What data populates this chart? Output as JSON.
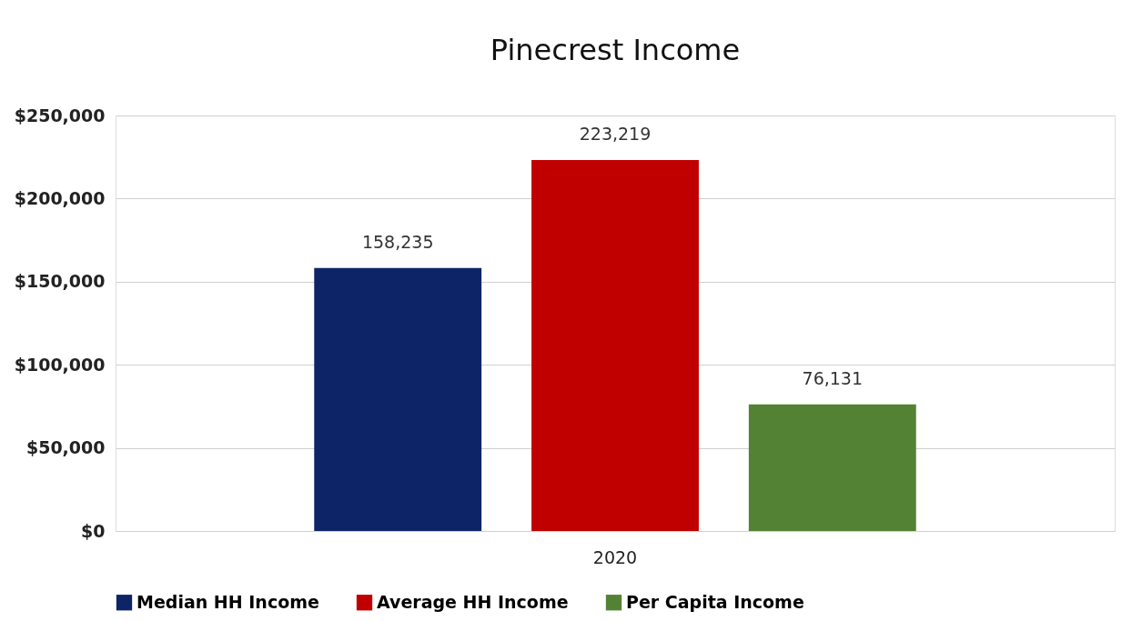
{
  "chart_data": {
    "type": "bar",
    "title": "Pinecrest Income",
    "categories": [
      "2020"
    ],
    "series": [
      {
        "name": "Median HH Income",
        "color": "#0d2566",
        "values": [
          158235
        ],
        "value_labels": [
          "158,235"
        ]
      },
      {
        "name": "Average HH Income",
        "color": "#c00000",
        "values": [
          223219
        ],
        "value_labels": [
          "223,219"
        ]
      },
      {
        "name": "Per Capita Income",
        "color": "#548235",
        "values": [
          76131
        ],
        "value_labels": [
          "76,131"
        ]
      }
    ],
    "ylim": [
      0,
      250000
    ],
    "yticks": [
      {
        "value": 0,
        "label": "$0"
      },
      {
        "value": 50000,
        "label": "$50,000"
      },
      {
        "value": 100000,
        "label": "$100,000"
      },
      {
        "value": 150000,
        "label": "$150,000"
      },
      {
        "value": 200000,
        "label": "$200,000"
      },
      {
        "value": 250000,
        "label": "$250,000"
      }
    ],
    "grid": "y",
    "legend": "bottom"
  }
}
